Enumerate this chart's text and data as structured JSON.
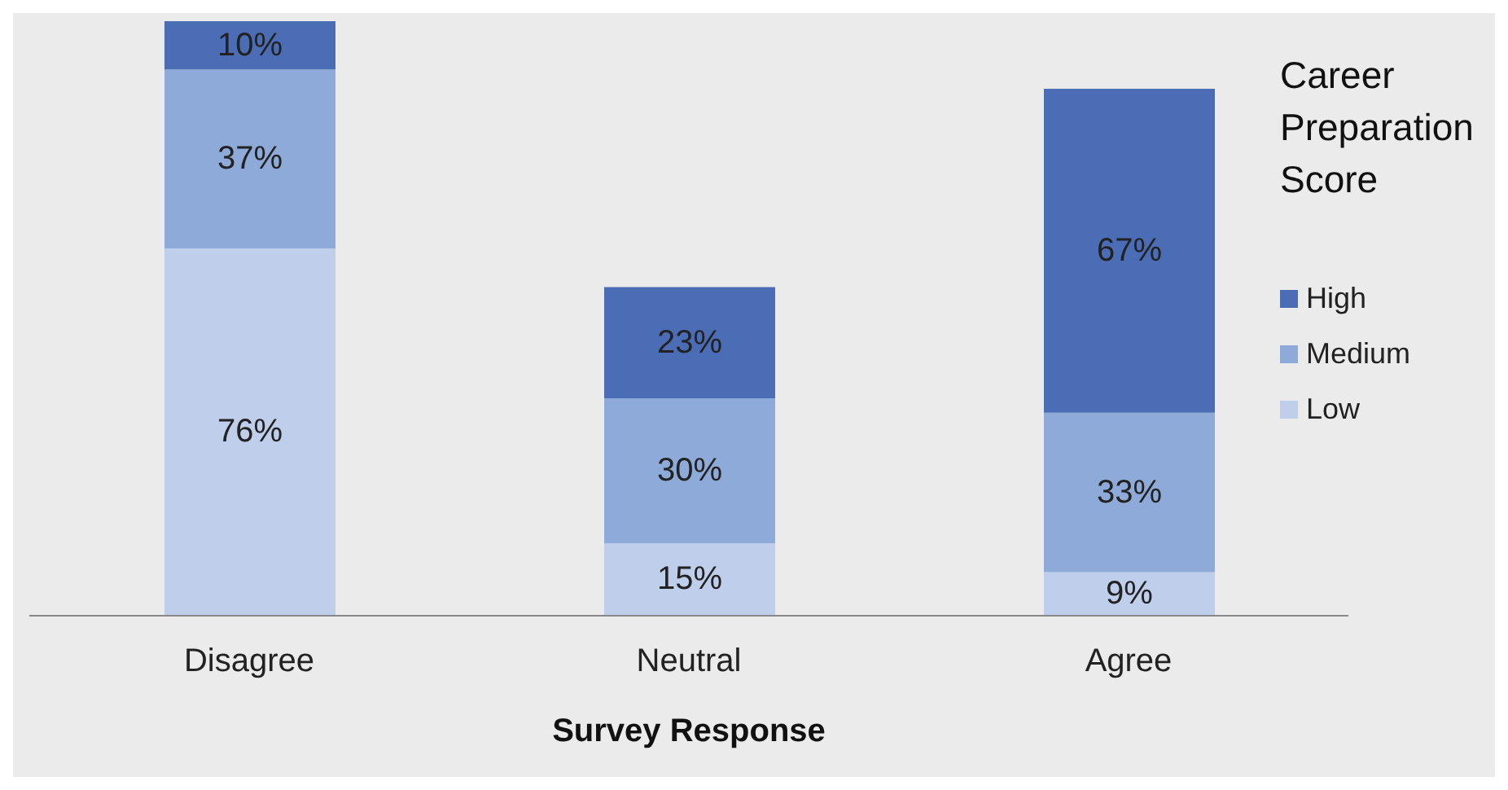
{
  "chart_data": {
    "type": "bar",
    "stacked": true,
    "xlabel": "Survey Response",
    "legend_title": "Career Preparation Score",
    "legend": "right",
    "categories": [
      "Disagree",
      "Neutral",
      "Agree"
    ],
    "series": [
      {
        "name": "Low",
        "color": "#bfcfeb",
        "values": [
          76,
          15,
          9
        ],
        "value_labels": [
          "76%",
          "15%",
          "9%"
        ]
      },
      {
        "name": "Medium",
        "color": "#8eaad9",
        "values": [
          37,
          30,
          33
        ],
        "value_labels": [
          "37%",
          "30%",
          "33%"
        ]
      },
      {
        "name": "High",
        "color": "#4a6db5",
        "values": [
          10,
          23,
          67
        ],
        "value_labels": [
          "10%",
          "23%",
          "67%"
        ]
      }
    ]
  }
}
